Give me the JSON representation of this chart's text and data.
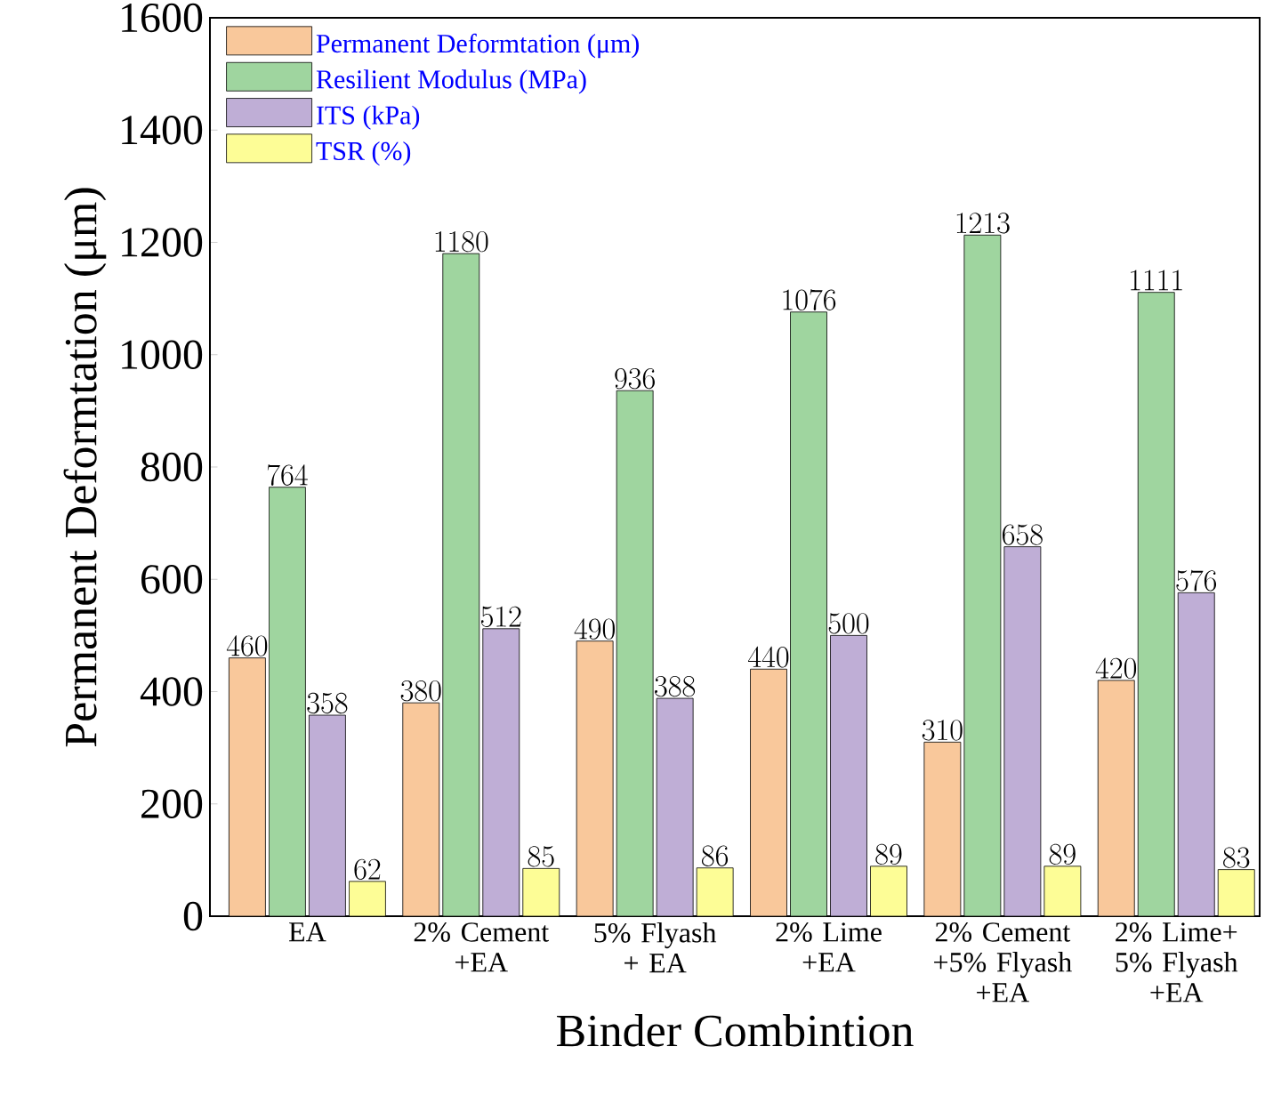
{
  "chart_data": {
    "type": "bar",
    "xlabel": "Binder Combintion",
    "ylabel": "Permanent Deformtation (μm)",
    "categories": [
      "EA",
      "2% Cement +EA",
      "5% Flyash + EA",
      "2% Lime +EA",
      "2% Cement +5% Flyash +EA",
      "2% Lime+ 5% Flyash +EA"
    ],
    "series": [
      {
        "name": "Permanent Deformtation (μm)",
        "color": "#f9c89b",
        "values": [
          460,
          380,
          490,
          440,
          310,
          420
        ]
      },
      {
        "name": "Resilient Modulus (MPa)",
        "color": "#9fd59f",
        "values": [
          764,
          1180,
          936,
          1076,
          1213,
          1111
        ]
      },
      {
        "name": "ITS (kPa)",
        "color": "#bfaed6",
        "values": [
          358,
          512,
          388,
          500,
          658,
          576
        ]
      },
      {
        "name": "TSR (%)",
        "color": "#fdfd96",
        "values": [
          62,
          85,
          86,
          89,
          89,
          83
        ]
      }
    ],
    "ylim": [
      0,
      1600
    ],
    "yticks": [
      0,
      200,
      400,
      600,
      800,
      1000,
      1200,
      1400,
      1600
    ],
    "data_labels": true,
    "legend": "top left",
    "grid": false
  }
}
